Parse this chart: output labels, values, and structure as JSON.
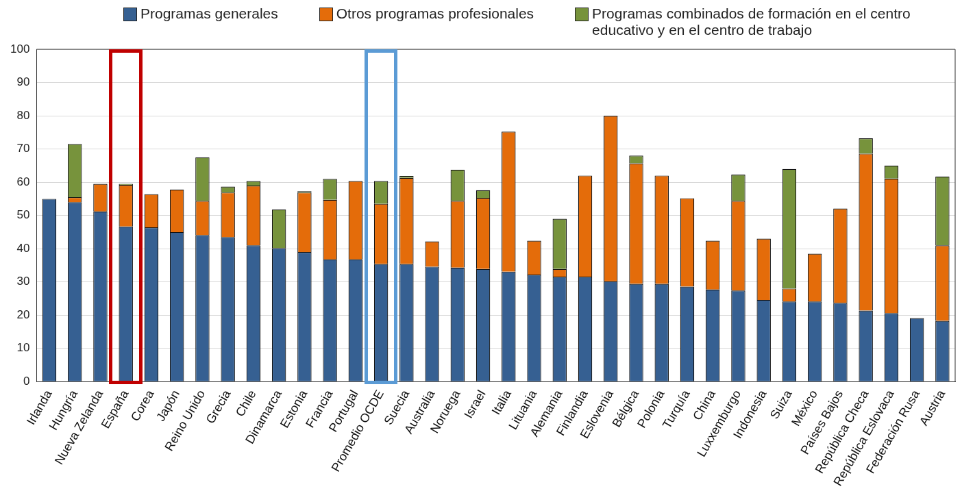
{
  "chart_data": {
    "type": "bar",
    "stacked": true,
    "legend": "top",
    "grid": "y",
    "categories": [
      "Irlanda",
      "Hungría",
      "Nueva Zelanda",
      "España",
      "Corea",
      "Japón",
      "Reino Unido",
      "Grecia",
      "Chile",
      "Dinamarca",
      "Estonia",
      "Francia",
      "Portugal",
      "Promedio OCDE",
      "Suecia",
      "Australia",
      "Noruega",
      "Israel",
      "Italia",
      "Lituania",
      "Alemania",
      "Finlandia",
      "Eslovenia",
      "Bélgica",
      "Polonia",
      "Turquía",
      "China",
      "Luxxemburgo",
      "Indonesia",
      "Suiza",
      "México",
      "Países Bajos",
      "República Checa",
      "República Eslovaca",
      "Federación Rusa",
      "Austria"
    ],
    "series": [
      {
        "name": "Programas generales",
        "color": "#366092",
        "values": [
          55,
          54,
          51.2,
          46.7,
          46.4,
          45,
          44.1,
          43.5,
          41,
          40.2,
          39,
          36.8,
          36.8,
          35.4,
          35.4,
          34.6,
          34.3,
          33.9,
          33.1,
          32.2,
          31.6,
          31.6,
          30.2,
          29.4,
          29.4,
          28.6,
          27.7,
          27.4,
          24.6,
          24.1,
          24.1,
          23.7,
          21.4,
          20.6,
          19.1,
          18.3
        ]
      },
      {
        "name": "Otros programas profesionales",
        "color": "#e46c0a",
        "values": [
          null,
          1.5,
          8.3,
          12.5,
          10,
          12.8,
          10.3,
          13.4,
          18,
          null,
          17.9,
          17.9,
          23.6,
          18.1,
          25.9,
          7.6,
          20.1,
          21.4,
          42.1,
          10.2,
          2.3,
          30.4,
          49.8,
          36.3,
          32.6,
          26.6,
          14.7,
          27,
          18.4,
          3.9,
          14.4,
          28.4,
          47.2,
          40.5,
          null,
          22.7
        ]
      },
      {
        "name": "Programas combinados de formación en el centro educativo y en el centro de trabajo",
        "color": "#77933c",
        "values": [
          null,
          16,
          null,
          0.3,
          null,
          null,
          13.1,
          1.8,
          1.4,
          11.6,
          0.4,
          6.3,
          null,
          6.9,
          0.6,
          null,
          9.4,
          2.3,
          null,
          null,
          15.1,
          null,
          null,
          2.3,
          null,
          null,
          null,
          7.9,
          null,
          36,
          null,
          null,
          4.6,
          3.9,
          null,
          20.7
        ]
      }
    ],
    "ylim": [
      0,
      100
    ],
    "yticks": [
      0,
      10,
      20,
      30,
      40,
      50,
      60,
      70,
      80,
      90,
      100
    ]
  }
}
